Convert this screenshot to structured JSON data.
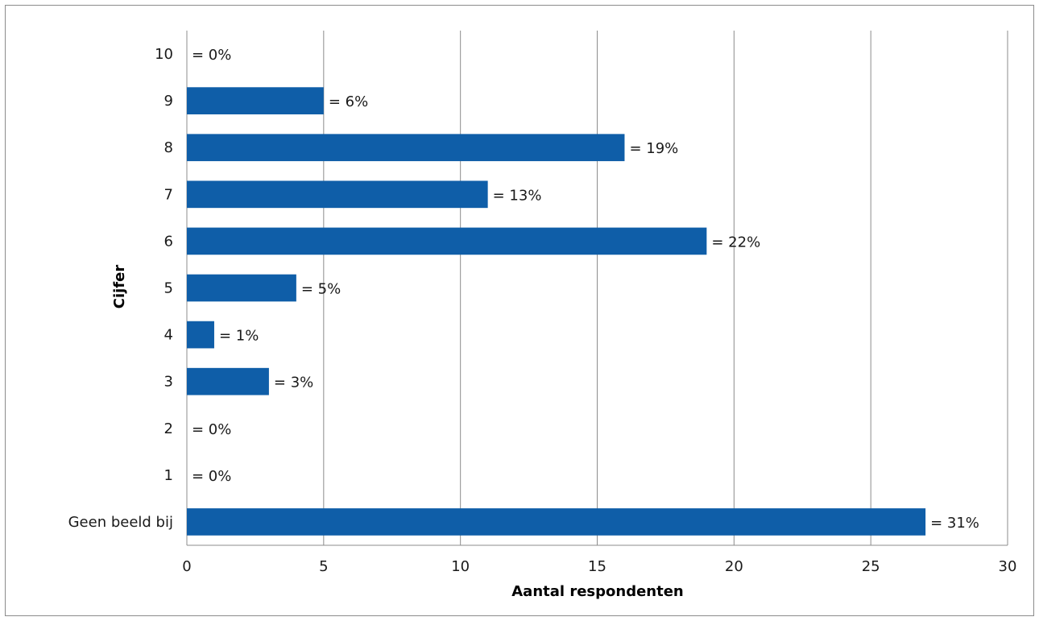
{
  "chart_data": {
    "type": "bar",
    "orientation": "horizontal",
    "categories": [
      "10",
      "9",
      "8",
      "7",
      "6",
      "5",
      "4",
      "3",
      "2",
      "1",
      "Geen beeld bij"
    ],
    "values": [
      0,
      5,
      16,
      11,
      19,
      4,
      1,
      3,
      0,
      0,
      27
    ],
    "data_labels": [
      "= 0%",
      "= 6%",
      "= 19%",
      "= 13%",
      "= 22%",
      "= 5%",
      "= 1%",
      "= 3%",
      "= 0%",
      "= 0%",
      "= 31%"
    ],
    "xlabel": "Aantal respondenten",
    "ylabel": "Cijfer",
    "xlim": [
      0,
      30
    ],
    "xticks": [
      0,
      5,
      10,
      15,
      20,
      25,
      30
    ],
    "grid": "vertical",
    "legend": "none",
    "colors": {
      "bar": "#0f5ea8",
      "grid": "#8c8c8c",
      "axis": "#8c8c8c"
    }
  }
}
